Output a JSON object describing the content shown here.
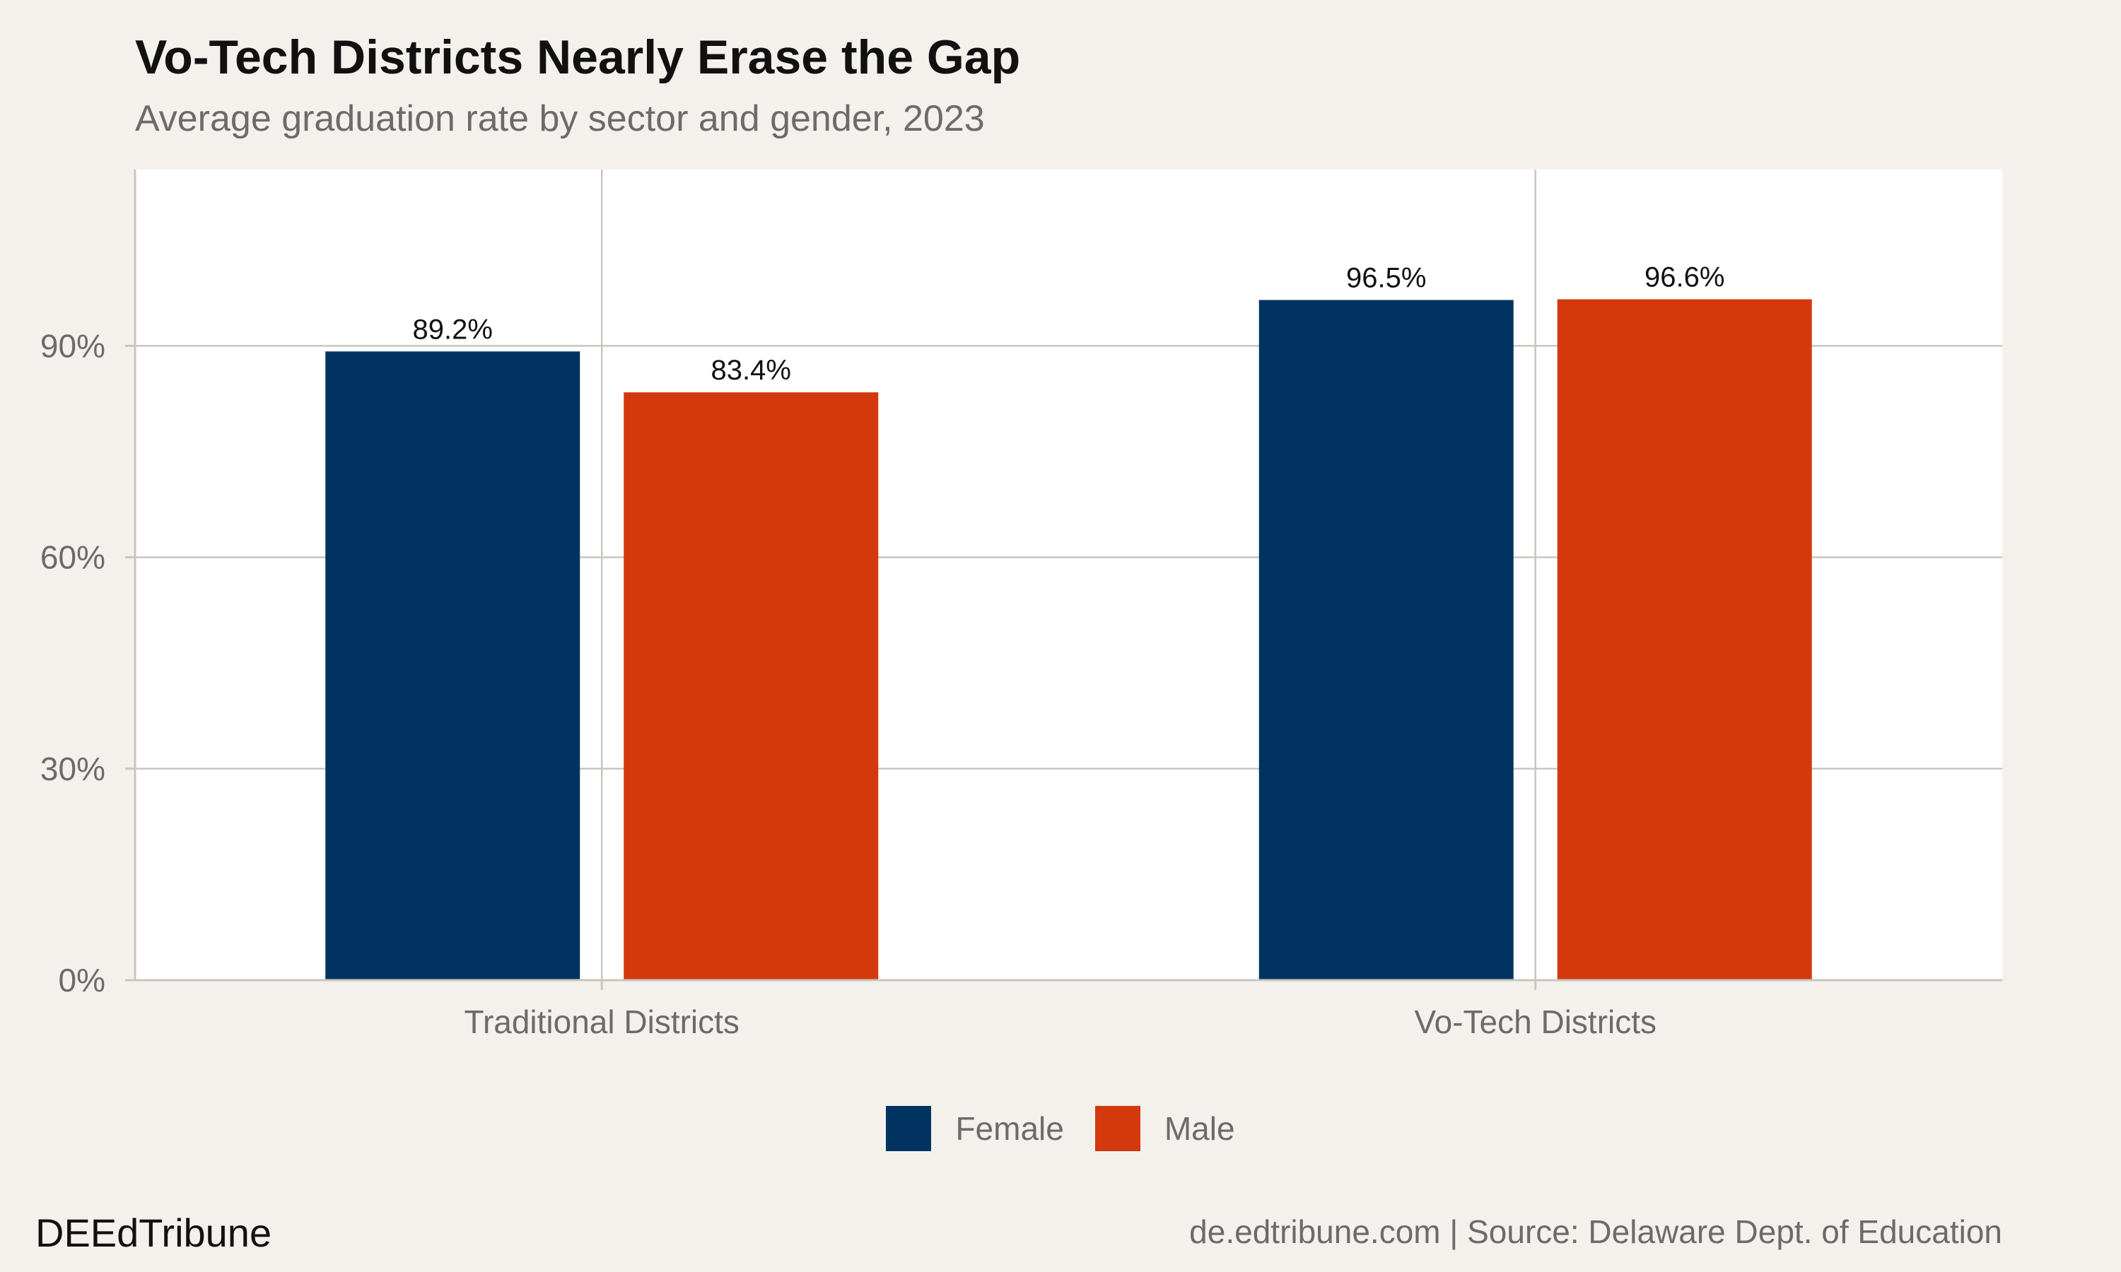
{
  "header": {
    "title": "Vo-Tech Districts Nearly Erase the Gap",
    "subtitle": "Average graduation rate by sector and gender, 2023"
  },
  "footer": {
    "brand": "DEEdTribune",
    "source": "de.edtribune.com | Source: Delaware Dept. of Education"
  },
  "colors": {
    "female": "#00335f",
    "male": "#d4380d",
    "panel": "#ffffff",
    "grid": "#c9c6bf",
    "background": "#f4f1ec"
  },
  "chart_data": {
    "type": "bar",
    "title": "Vo-Tech Districts Nearly Erase the Gap",
    "subtitle": "Average graduation rate by sector and gender, 2023",
    "categories": [
      "Traditional Districts",
      "Vo-Tech Districts"
    ],
    "series": [
      {
        "name": "Female",
        "values": [
          89.2,
          96.5
        ],
        "labels": [
          "89.2%",
          "96.5%"
        ],
        "color": "#00335f"
      },
      {
        "name": "Male",
        "values": [
          83.4,
          96.6
        ],
        "labels": [
          "83.4%",
          "96.6%"
        ],
        "color": "#d4380d"
      }
    ],
    "ylim": [
      0,
      115
    ],
    "yticks": [
      0,
      30,
      60,
      90
    ],
    "ytick_labels": [
      "0%",
      "30%",
      "60%",
      "90%"
    ],
    "grid": true,
    "legend": "bottom-center"
  }
}
